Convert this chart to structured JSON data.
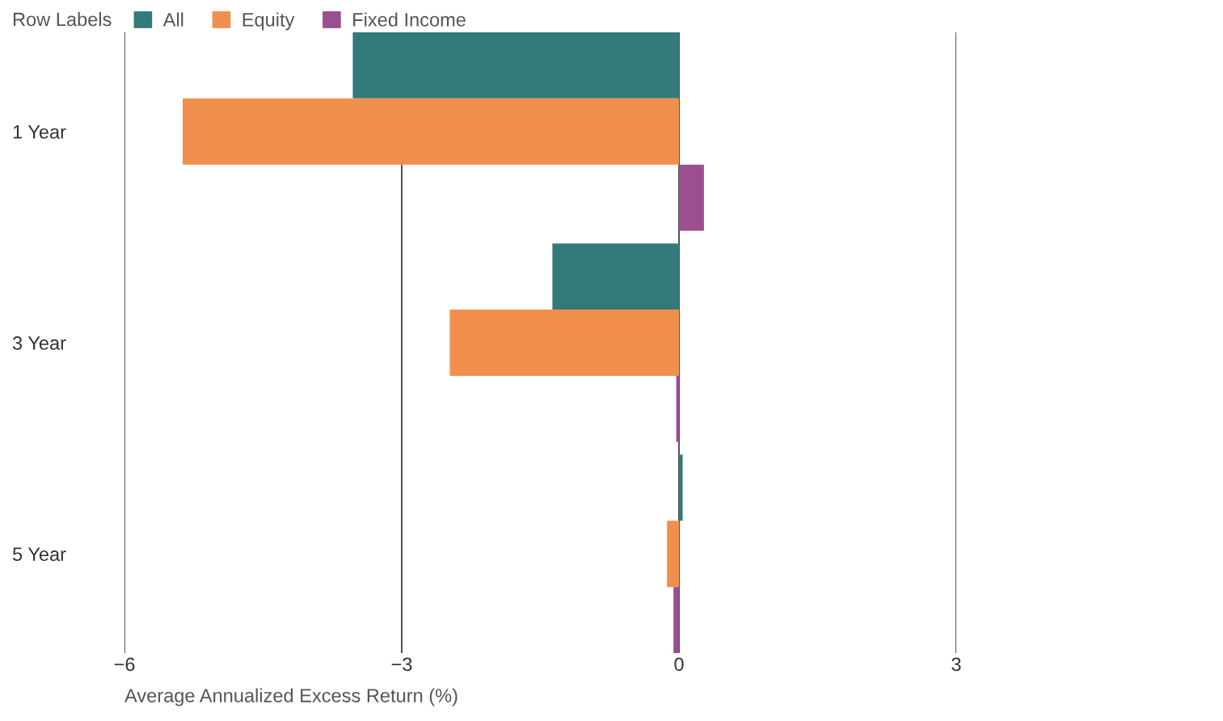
{
  "chart_data": {
    "type": "bar",
    "orientation": "horizontal",
    "categories": [
      "1 Year",
      "3 Year",
      "5 Year"
    ],
    "series": [
      {
        "name": "All",
        "color": "#337b7b",
        "values": [
          -3.53,
          -1.37,
          0.04
        ]
      },
      {
        "name": "Equity",
        "color": "#f0904c",
        "values": [
          -5.37,
          -2.48,
          -0.13
        ]
      },
      {
        "name": "Fixed Income",
        "color": "#9b4f8e",
        "values": [
          0.27,
          -0.03,
          -0.06
        ]
      }
    ],
    "legend_title": "Row Labels",
    "legend": "top left",
    "xlabel": "Average Annualized Excess Return (%)",
    "xlim": [
      -6,
      3
    ],
    "xticks": [
      {
        "value": -6,
        "label": "−6"
      },
      {
        "value": -3,
        "label": "−3"
      },
      0,
      3
    ],
    "grid": "x"
  }
}
